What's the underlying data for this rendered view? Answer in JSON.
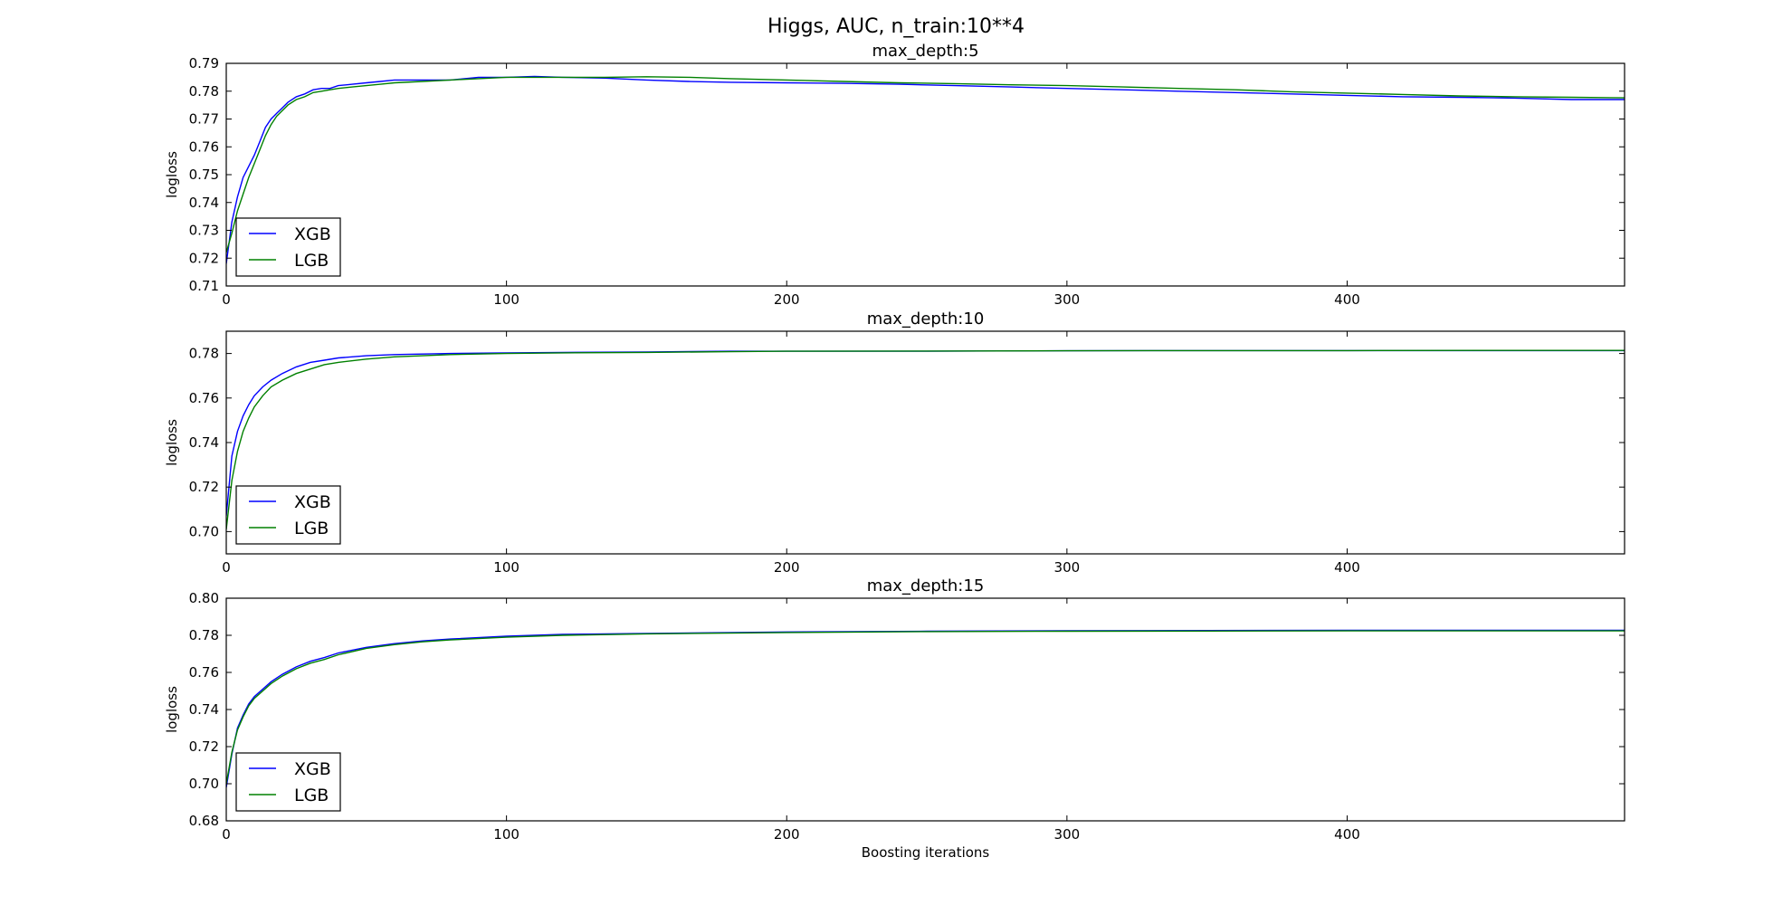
{
  "figure": {
    "title": "Higgs, AUC, n_train:10**4"
  },
  "colors": {
    "XGB": "#0000ff",
    "LGB": "#008000"
  },
  "chart_data": [
    {
      "type": "line",
      "title": "max_depth:5",
      "xlabel": "",
      "ylabel": "logloss",
      "xlim": [
        0,
        499
      ],
      "ylim": [
        0.71,
        0.79
      ],
      "xticks": [
        0,
        100,
        200,
        300,
        400
      ],
      "yticks": [
        0.71,
        0.72,
        0.73,
        0.74,
        0.75,
        0.76,
        0.77,
        0.78,
        0.79
      ],
      "ytick_decimals": 2,
      "legend": "lower-left",
      "grid": false,
      "series": [
        {
          "name": "XGB",
          "x": [
            0,
            2,
            4,
            6,
            8,
            10,
            12,
            14,
            16,
            18,
            20,
            22,
            25,
            28,
            31,
            34,
            37,
            40,
            45,
            50,
            55,
            60,
            70,
            80,
            90,
            100,
            110,
            120,
            135,
            150,
            165,
            180,
            200,
            220,
            240,
            260,
            280,
            300,
            320,
            340,
            360,
            380,
            400,
            420,
            440,
            460,
            480,
            499
          ],
          "y": [
            0.718,
            0.733,
            0.742,
            0.749,
            0.753,
            0.757,
            0.762,
            0.767,
            0.77,
            0.772,
            0.774,
            0.776,
            0.778,
            0.779,
            0.7805,
            0.781,
            0.781,
            0.782,
            0.7825,
            0.783,
            0.7835,
            0.784,
            0.784,
            0.784,
            0.785,
            0.785,
            0.7853,
            0.785,
            0.7847,
            0.784,
            0.7835,
            0.7832,
            0.783,
            0.7828,
            0.7825,
            0.782,
            0.7815,
            0.781,
            0.7805,
            0.78,
            0.7795,
            0.779,
            0.7785,
            0.778,
            0.7778,
            0.7775,
            0.777,
            0.777
          ]
        },
        {
          "name": "LGB",
          "x": [
            0,
            2,
            4,
            6,
            8,
            10,
            12,
            14,
            16,
            18,
            20,
            22,
            25,
            28,
            31,
            34,
            37,
            40,
            45,
            50,
            55,
            60,
            70,
            80,
            90,
            100,
            110,
            120,
            135,
            150,
            165,
            180,
            200,
            220,
            240,
            260,
            280,
            300,
            320,
            340,
            360,
            380,
            400,
            420,
            440,
            460,
            480,
            499
          ],
          "y": [
            0.722,
            0.729,
            0.737,
            0.743,
            0.749,
            0.754,
            0.759,
            0.764,
            0.768,
            0.771,
            0.773,
            0.775,
            0.777,
            0.778,
            0.7795,
            0.78,
            0.7805,
            0.781,
            0.7815,
            0.782,
            0.7825,
            0.783,
            0.7835,
            0.784,
            0.7845,
            0.785,
            0.785,
            0.785,
            0.785,
            0.7852,
            0.785,
            0.7845,
            0.784,
            0.7835,
            0.783,
            0.7827,
            0.7823,
            0.782,
            0.7815,
            0.781,
            0.7805,
            0.7798,
            0.7793,
            0.7788,
            0.7783,
            0.778,
            0.7778,
            0.7776
          ]
        }
      ]
    },
    {
      "type": "line",
      "title": "max_depth:10",
      "xlabel": "",
      "ylabel": "logloss",
      "xlim": [
        0,
        499
      ],
      "ylim": [
        0.69,
        0.79
      ],
      "xticks": [
        0,
        100,
        200,
        300,
        400
      ],
      "yticks": [
        0.7,
        0.72,
        0.74,
        0.76,
        0.78
      ],
      "ytick_decimals": 2,
      "legend": "lower-left",
      "grid": false,
      "series": [
        {
          "name": "XGB",
          "x": [
            0,
            2,
            4,
            6,
            8,
            10,
            13,
            16,
            20,
            25,
            30,
            35,
            40,
            50,
            60,
            80,
            100,
            120,
            150,
            180,
            200,
            250,
            300,
            350,
            400,
            450,
            499
          ],
          "y": [
            0.707,
            0.734,
            0.745,
            0.752,
            0.757,
            0.761,
            0.765,
            0.768,
            0.771,
            0.774,
            0.776,
            0.777,
            0.778,
            0.779,
            0.7795,
            0.78,
            0.7803,
            0.7805,
            0.7807,
            0.781,
            0.781,
            0.781,
            0.7812,
            0.7813,
            0.7813,
            0.7813,
            0.7813
          ]
        },
        {
          "name": "LGB",
          "x": [
            0,
            2,
            4,
            6,
            8,
            10,
            13,
            16,
            20,
            25,
            30,
            35,
            40,
            50,
            60,
            80,
            100,
            120,
            150,
            180,
            200,
            250,
            300,
            350,
            400,
            450,
            499
          ],
          "y": [
            0.701,
            0.723,
            0.736,
            0.745,
            0.751,
            0.756,
            0.761,
            0.765,
            0.768,
            0.771,
            0.773,
            0.775,
            0.776,
            0.7775,
            0.7785,
            0.7795,
            0.78,
            0.7803,
            0.7805,
            0.7808,
            0.781,
            0.7811,
            0.7812,
            0.7813,
            0.7813,
            0.7814,
            0.7814
          ]
        }
      ]
    },
    {
      "type": "line",
      "title": "max_depth:15",
      "xlabel": "Boosting iterations",
      "ylabel": "logloss",
      "xlim": [
        0,
        499
      ],
      "ylim": [
        0.68,
        0.8
      ],
      "xticks": [
        0,
        100,
        200,
        300,
        400
      ],
      "yticks": [
        0.68,
        0.7,
        0.72,
        0.74,
        0.76,
        0.78,
        0.8
      ],
      "ytick_decimals": 2,
      "legend": "lower-left",
      "grid": false,
      "series": [
        {
          "name": "XGB",
          "x": [
            0,
            2,
            4,
            6,
            8,
            10,
            13,
            16,
            20,
            25,
            30,
            35,
            40,
            50,
            60,
            70,
            80,
            100,
            120,
            150,
            200,
            250,
            300,
            350,
            400,
            450,
            499
          ],
          "y": [
            0.698,
            0.716,
            0.73,
            0.737,
            0.743,
            0.747,
            0.751,
            0.755,
            0.759,
            0.763,
            0.766,
            0.768,
            0.7705,
            0.7735,
            0.7755,
            0.777,
            0.778,
            0.7795,
            0.7805,
            0.781,
            0.7818,
            0.7822,
            0.7825,
            0.7826,
            0.7827,
            0.7827,
            0.7827
          ]
        },
        {
          "name": "LGB",
          "x": [
            0,
            2,
            4,
            6,
            8,
            10,
            13,
            16,
            20,
            25,
            30,
            35,
            40,
            50,
            60,
            70,
            80,
            100,
            120,
            150,
            200,
            250,
            300,
            350,
            400,
            450,
            499
          ],
          "y": [
            0.7,
            0.717,
            0.729,
            0.736,
            0.742,
            0.746,
            0.75,
            0.754,
            0.758,
            0.762,
            0.765,
            0.767,
            0.7695,
            0.773,
            0.775,
            0.7765,
            0.7775,
            0.779,
            0.78,
            0.7808,
            0.7815,
            0.782,
            0.7822,
            0.7823,
            0.7824,
            0.7824,
            0.7824
          ]
        }
      ]
    }
  ]
}
